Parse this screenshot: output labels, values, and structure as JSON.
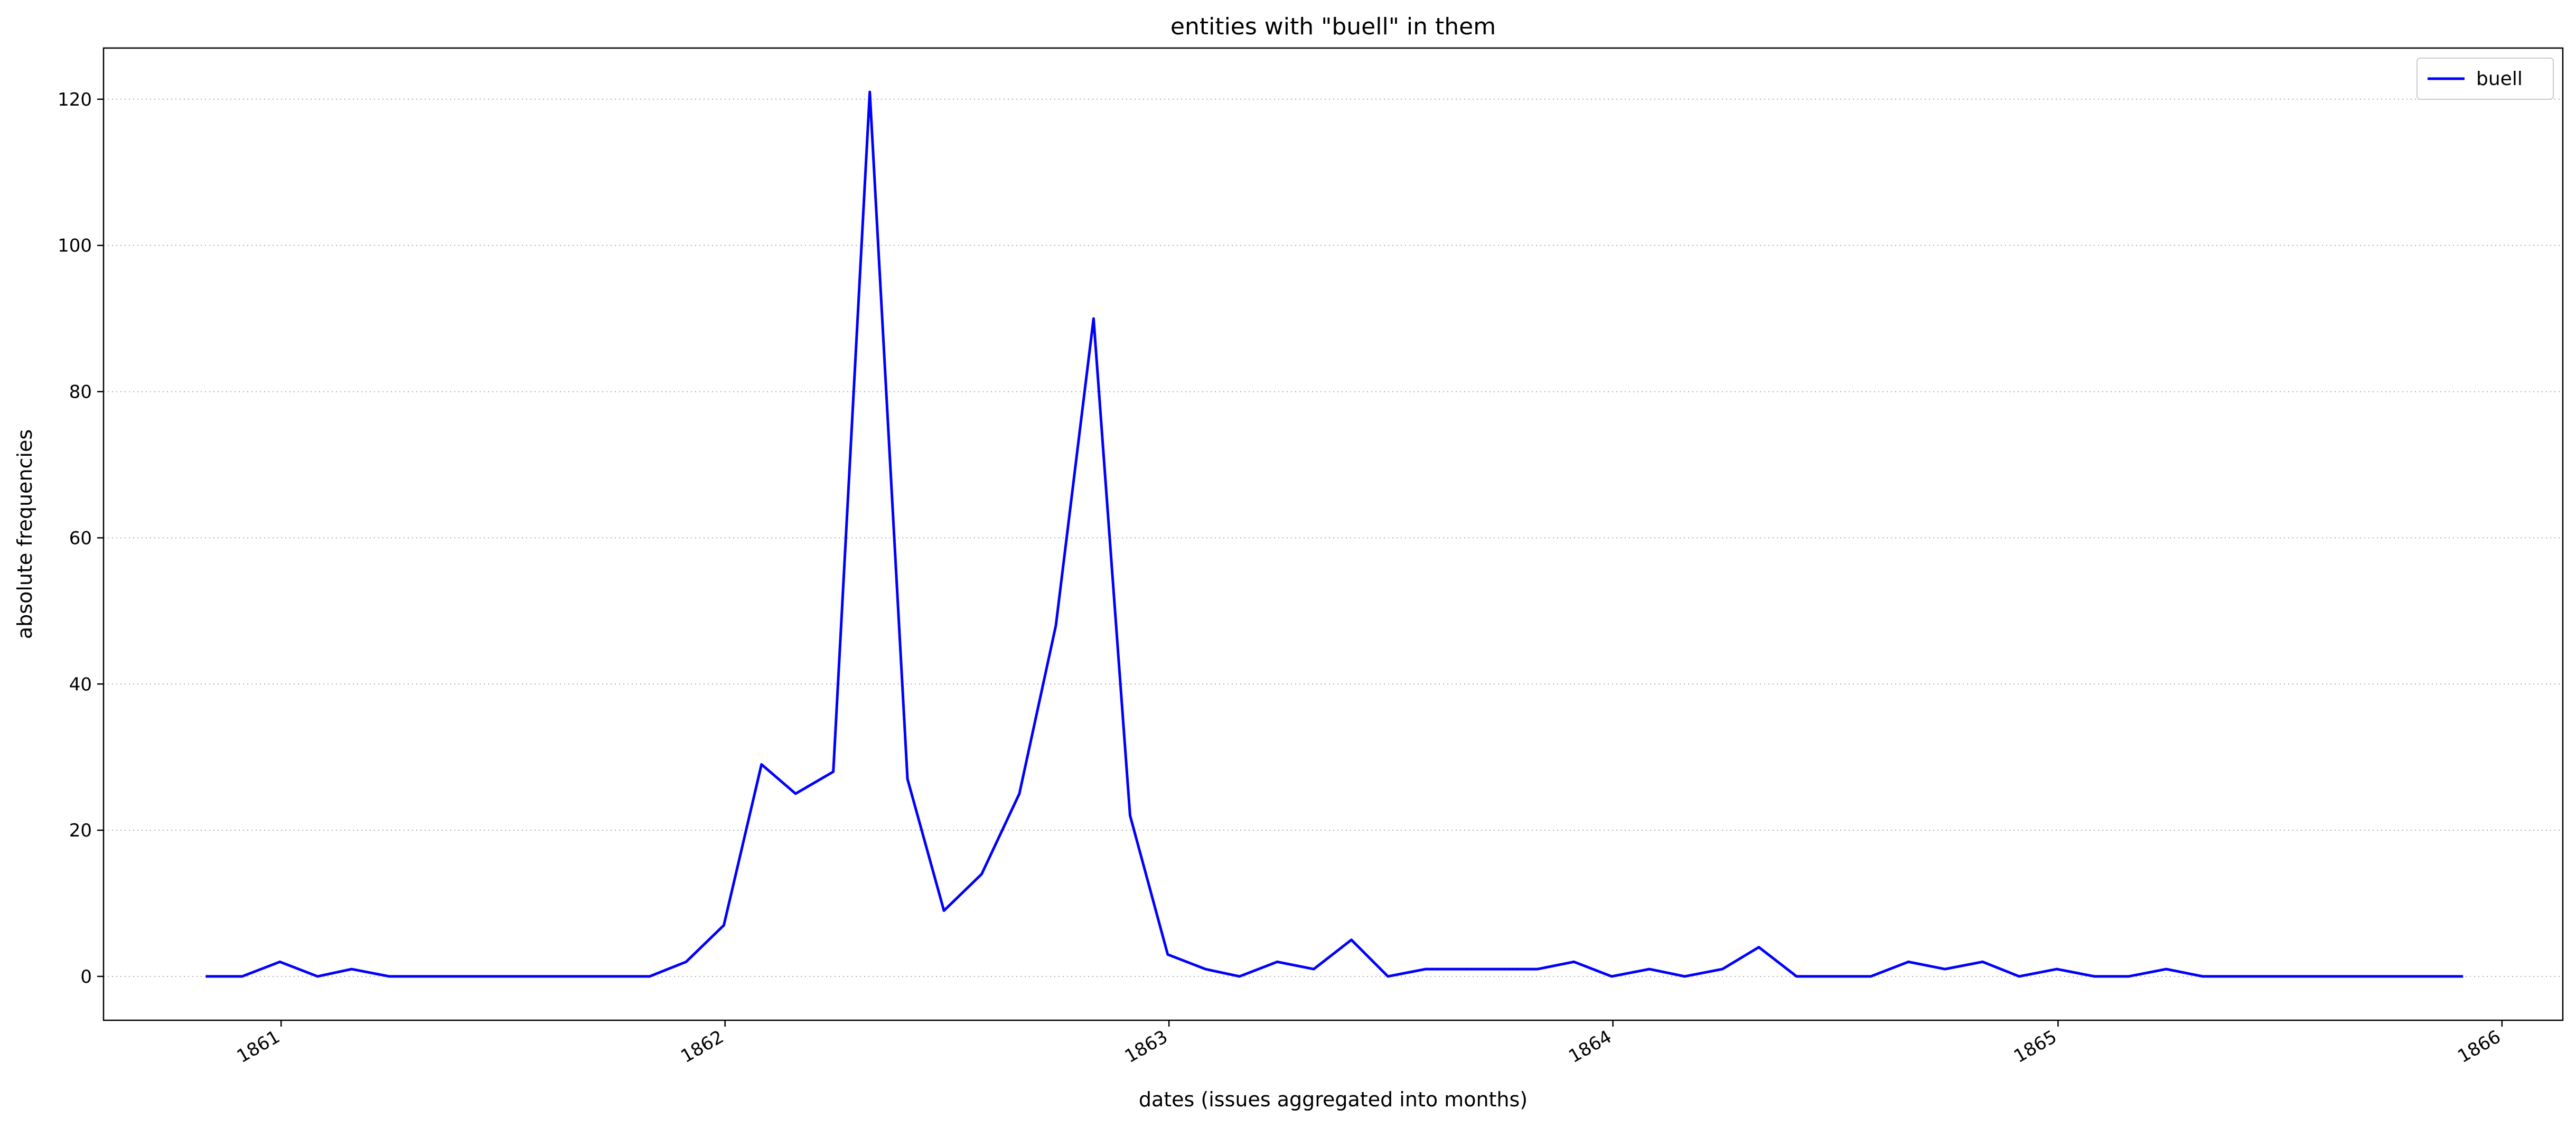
{
  "chart_data": {
    "type": "line",
    "title": "entities with \"buell\" in them",
    "xlabel": "dates (issues aggregated into months)",
    "ylabel": "absolute frequencies",
    "xlim": [
      "1860-08-08",
      "1866-02-20"
    ],
    "ylim": [
      -6,
      127
    ],
    "x_ticks": [
      "1861-01-01",
      "1862-01-01",
      "1863-01-01",
      "1864-01-01",
      "1865-01-01",
      "1866-01-01"
    ],
    "x_tick_labels": [
      "1861",
      "1862",
      "1863",
      "1864",
      "1865",
      "1866"
    ],
    "y_ticks": [
      0,
      20,
      40,
      60,
      80,
      100,
      120
    ],
    "y_tick_labels": [
      "0",
      "20",
      "40",
      "60",
      "80",
      "100",
      "120"
    ],
    "grid": "y, dotted",
    "legend_position": "top-right",
    "series": [
      {
        "name": "buell",
        "color": "#0000ff",
        "x": [
          "1860-10-31",
          "1860-11-30",
          "1860-12-31",
          "1861-01-31",
          "1861-02-28",
          "1861-03-31",
          "1861-04-30",
          "1861-05-31",
          "1861-06-30",
          "1861-07-31",
          "1861-08-31",
          "1861-09-30",
          "1861-10-31",
          "1861-11-30",
          "1861-12-31",
          "1862-01-31",
          "1862-02-28",
          "1862-03-31",
          "1862-04-30",
          "1862-05-31",
          "1862-06-30",
          "1862-07-31",
          "1862-08-31",
          "1862-09-30",
          "1862-10-31",
          "1862-11-30",
          "1862-12-31",
          "1863-01-31",
          "1863-02-28",
          "1863-03-31",
          "1863-04-30",
          "1863-05-31",
          "1863-06-30",
          "1863-07-31",
          "1863-08-31",
          "1863-09-30",
          "1863-10-31",
          "1863-11-30",
          "1863-12-31",
          "1864-01-31",
          "1864-02-29",
          "1864-03-31",
          "1864-04-30",
          "1864-05-31",
          "1864-06-30",
          "1864-07-31",
          "1864-08-31",
          "1864-09-30",
          "1864-10-31",
          "1864-11-30",
          "1864-12-31",
          "1865-01-31",
          "1865-02-28",
          "1865-03-31",
          "1865-04-30",
          "1865-05-31",
          "1865-06-30",
          "1865-07-31",
          "1865-08-31",
          "1865-09-30",
          "1865-10-31",
          "1865-11-30"
        ],
        "values": [
          0,
          0,
          2,
          0,
          1,
          0,
          0,
          0,
          0,
          0,
          0,
          0,
          0,
          2,
          7,
          29,
          25,
          28,
          121,
          27,
          9,
          14,
          25,
          48,
          90,
          22,
          3,
          1,
          0,
          2,
          1,
          5,
          0,
          1,
          1,
          1,
          1,
          2,
          0,
          1,
          0,
          1,
          4,
          0,
          0,
          0,
          2,
          1,
          2,
          0,
          1,
          0,
          0,
          1,
          0,
          0,
          0,
          0,
          0,
          0,
          0,
          0
        ]
      }
    ]
  }
}
